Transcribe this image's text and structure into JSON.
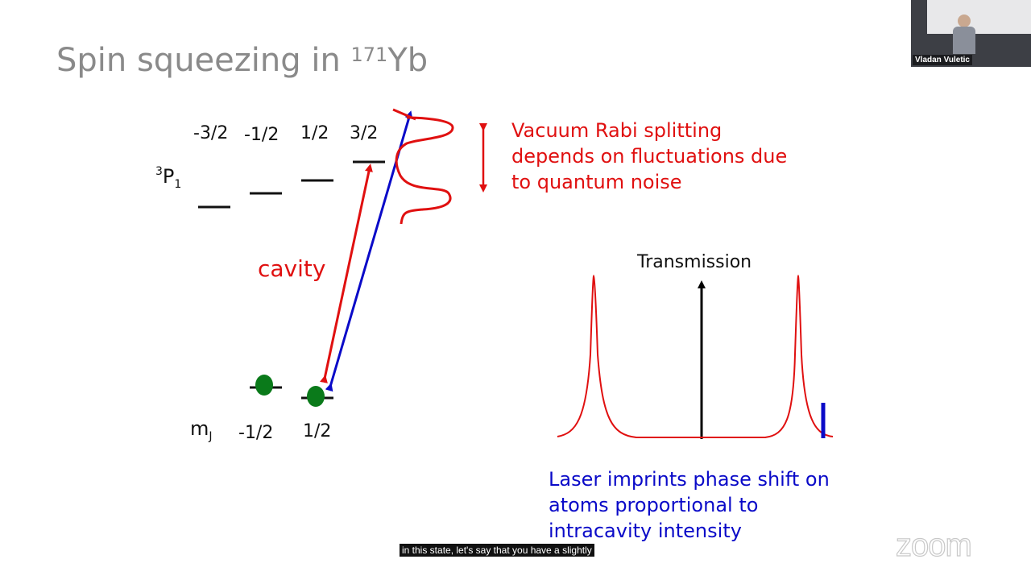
{
  "slide": {
    "title_prefix": "Spin squeezing in ",
    "title_sup": "171",
    "title_element": "Yb"
  },
  "energy_diagram": {
    "upper_level_label": "P",
    "upper_level_sup": "3",
    "upper_level_sub": "1",
    "upper_mj": [
      "-3/2",
      "-1/2",
      "1/2",
      "3/2"
    ],
    "lower_level_label": "m",
    "lower_level_sub": "J",
    "lower_mj": [
      "-1/2",
      "1/2"
    ],
    "cavity_label": "cavity"
  },
  "annotations": {
    "rabi_lines": [
      "Vacuum Rabi splitting",
      "depends on fluctuations due",
      "to quantum noise"
    ],
    "laser_lines": [
      "Laser imprints phase shift on",
      "atoms proportional to",
      "intracavity intensity"
    ]
  },
  "transmission_plot": {
    "label": "Transmission"
  },
  "colors": {
    "red": "#e01010",
    "blue": "#0a0ac8",
    "atom_green": "#0a7a1a",
    "title_gray": "#8a8a8a"
  },
  "video": {
    "speaker_name": "Vladan Vuletic"
  },
  "caption": {
    "text": "in this state, let's say that you have a slightly"
  },
  "branding": {
    "logo_text": "zoom"
  }
}
